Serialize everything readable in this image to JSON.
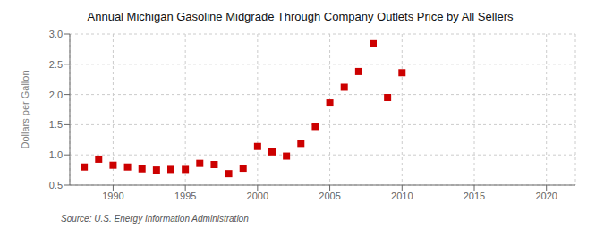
{
  "chart_data": {
    "type": "scatter",
    "title": "Annual Michigan Gasoline Midgrade Through Company Outlets Price by All Sellers",
    "y_label": "Dollars per Gallon",
    "annotation": "Source: U.S. Energy Information Administration",
    "x": [
      1988,
      1989,
      1990,
      1991,
      1992,
      1993,
      1994,
      1995,
      1996,
      1997,
      1998,
      1999,
      2000,
      2001,
      2002,
      2003,
      2004,
      2005,
      2006,
      2007,
      2008,
      2009,
      2010
    ],
    "values": [
      0.8,
      0.93,
      0.83,
      0.8,
      0.77,
      0.75,
      0.76,
      0.76,
      0.86,
      0.84,
      0.69,
      0.78,
      1.14,
      1.05,
      0.98,
      1.19,
      1.47,
      1.86,
      2.12,
      2.38,
      2.84,
      1.95,
      2.36
    ],
    "color": "#cc0000",
    "marker": "square",
    "xlim": [
      1987,
      2022
    ],
    "ylim": [
      0.5,
      3.0
    ],
    "xticks": [
      1990,
      1995,
      2000,
      2005,
      2010,
      2015,
      2020
    ],
    "yticks": [
      0.5,
      {
        "value": 1,
        "label": "1.0"
      },
      1.5,
      {
        "value": 2,
        "label": "2.0"
      },
      2.5,
      {
        "value": 3,
        "label": "3.0"
      }
    ],
    "grid": true
  }
}
